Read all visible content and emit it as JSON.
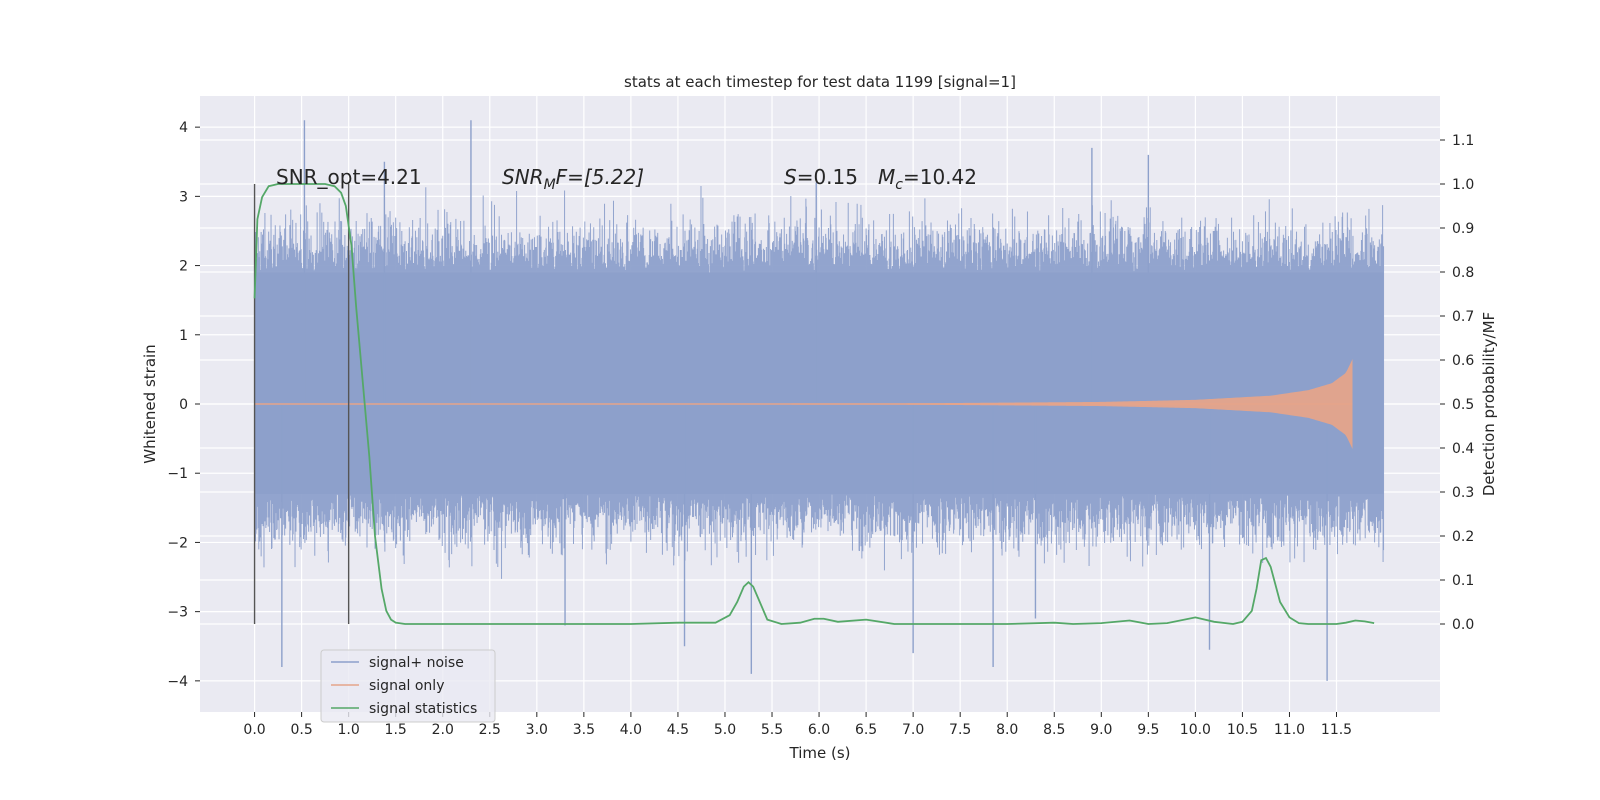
{
  "chart_data": {
    "type": "line",
    "title": "stats at each timestep for test data 1199 [signal=1]",
    "xlabel": "Time (s)",
    "ylabel_left": "Whitened strain",
    "ylabel_right": "Detection probability/MF",
    "xlim": [
      -0.58,
      12.6
    ],
    "ylim_left": [
      -4.45,
      4.45
    ],
    "ylim_right": [
      -0.2,
      1.2
    ],
    "x_ticks": [
      "0.0",
      "0.5",
      "1.0",
      "1.5",
      "2.0",
      "2.5",
      "3.0",
      "3.5",
      "4.0",
      "4.5",
      "5.0",
      "5.5",
      "6.0",
      "6.5",
      "7.0",
      "7.5",
      "8.0",
      "8.5",
      "9.0",
      "9.5",
      "10.0",
      "10.5",
      "11.0",
      "11.5"
    ],
    "y_ticks_left": [
      "4",
      "3",
      "2",
      "1",
      "0",
      "−1",
      "−2",
      "−3",
      "−4"
    ],
    "y_ticks_right": [
      "1.1",
      "1.0",
      "0.9",
      "0.8",
      "0.7",
      "0.6",
      "0.5",
      "0.4",
      "0.3",
      "0.2",
      "0.1",
      "0.0"
    ],
    "grid": true,
    "legend_placement": "lower-left",
    "window_markers_x": [
      0.0,
      1.0
    ],
    "annotations": {
      "snr_opt": "SNR_opt=4.21",
      "snr_mf_sym": "SNR",
      "snr_mf_sub": "M",
      "snr_mf_rest": "F=[5.22]",
      "s_sym": "S",
      "s_val": "=0.15",
      "mc_sym": "M",
      "mc_sub": "c",
      "mc_val": "=10.42"
    },
    "series": [
      {
        "name": "signal+ noise",
        "color": "#8da0cb",
        "axis": "left",
        "t_range": [
          0.0,
          12.0
        ],
        "envelope": [
          {
            "x": 0.0,
            "lo": -1.3,
            "hi": 1.9
          },
          {
            "x": 6.0,
            "lo": -1.3,
            "hi": 1.9
          },
          {
            "x": 12.0,
            "lo": -1.3,
            "hi": 1.9
          }
        ],
        "peaks": [
          {
            "x": 0.53,
            "y": 4.1
          },
          {
            "x": 2.3,
            "y": 4.1
          },
          {
            "x": 1.38,
            "y": 3.5
          },
          {
            "x": 0.29,
            "y": -3.8
          },
          {
            "x": 5.28,
            "y": -3.9
          },
          {
            "x": 7.85,
            "y": -3.8
          },
          {
            "x": 11.4,
            "y": -4.0
          },
          {
            "x": 4.57,
            "y": -3.5
          },
          {
            "x": 7.0,
            "y": -3.6
          },
          {
            "x": 8.9,
            "y": 3.7
          },
          {
            "x": 9.5,
            "y": 3.6
          },
          {
            "x": 3.3,
            "y": -3.2
          },
          {
            "x": 10.15,
            "y": -3.55
          },
          {
            "x": 8.3,
            "y": -3.1
          },
          {
            "x": 5.97,
            "y": 3.2
          }
        ]
      },
      {
        "name": "signal only",
        "color": "#e5a48a",
        "axis": "left",
        "t_range": [
          0.0,
          11.67
        ],
        "amplitude": [
          {
            "x": 0.0,
            "y": 0.0
          },
          {
            "x": 7.0,
            "y": 0.01
          },
          {
            "x": 9.0,
            "y": 0.03
          },
          {
            "x": 10.0,
            "y": 0.06
          },
          {
            "x": 10.8,
            "y": 0.12
          },
          {
            "x": 11.2,
            "y": 0.2
          },
          {
            "x": 11.45,
            "y": 0.3
          },
          {
            "x": 11.6,
            "y": 0.45
          },
          {
            "x": 11.67,
            "y": 0.65
          }
        ]
      },
      {
        "name": "signal statistics",
        "color": "#55a868",
        "axis": "right",
        "x": [
          0.0,
          0.03,
          0.08,
          0.15,
          0.25,
          0.4,
          0.6,
          0.75,
          0.85,
          0.92,
          0.97,
          1.03,
          1.08,
          1.15,
          1.22,
          1.28,
          1.35,
          1.4,
          1.45,
          1.5,
          1.6,
          2.0,
          3.0,
          4.0,
          4.5,
          4.9,
          5.05,
          5.13,
          5.2,
          5.25,
          5.3,
          5.37,
          5.45,
          5.6,
          5.8,
          5.95,
          6.05,
          6.2,
          6.5,
          6.8,
          7.3,
          8.0,
          8.5,
          8.7,
          9.0,
          9.3,
          9.5,
          9.7,
          10.0,
          10.2,
          10.4,
          10.5,
          10.6,
          10.65,
          10.7,
          10.75,
          10.8,
          10.85,
          10.9,
          11.0,
          11.1,
          11.2,
          11.5,
          11.6,
          11.7,
          11.8,
          11.9
        ],
        "y": [
          0.74,
          0.92,
          0.97,
          0.995,
          1.0,
          1.0,
          1.0,
          1.0,
          0.995,
          0.98,
          0.95,
          0.86,
          0.72,
          0.55,
          0.38,
          0.2,
          0.08,
          0.03,
          0.01,
          0.003,
          0.0,
          0.0,
          0.0,
          0.0,
          0.003,
          0.003,
          0.02,
          0.05,
          0.085,
          0.095,
          0.085,
          0.05,
          0.01,
          0.0,
          0.003,
          0.012,
          0.012,
          0.005,
          0.01,
          0.0,
          0.0,
          0.0,
          0.003,
          0.0,
          0.002,
          0.008,
          0.0,
          0.002,
          0.015,
          0.005,
          0.0,
          0.005,
          0.03,
          0.08,
          0.145,
          0.15,
          0.13,
          0.09,
          0.05,
          0.015,
          0.002,
          0.0,
          0.0,
          0.003,
          0.008,
          0.006,
          0.002
        ]
      }
    ]
  }
}
